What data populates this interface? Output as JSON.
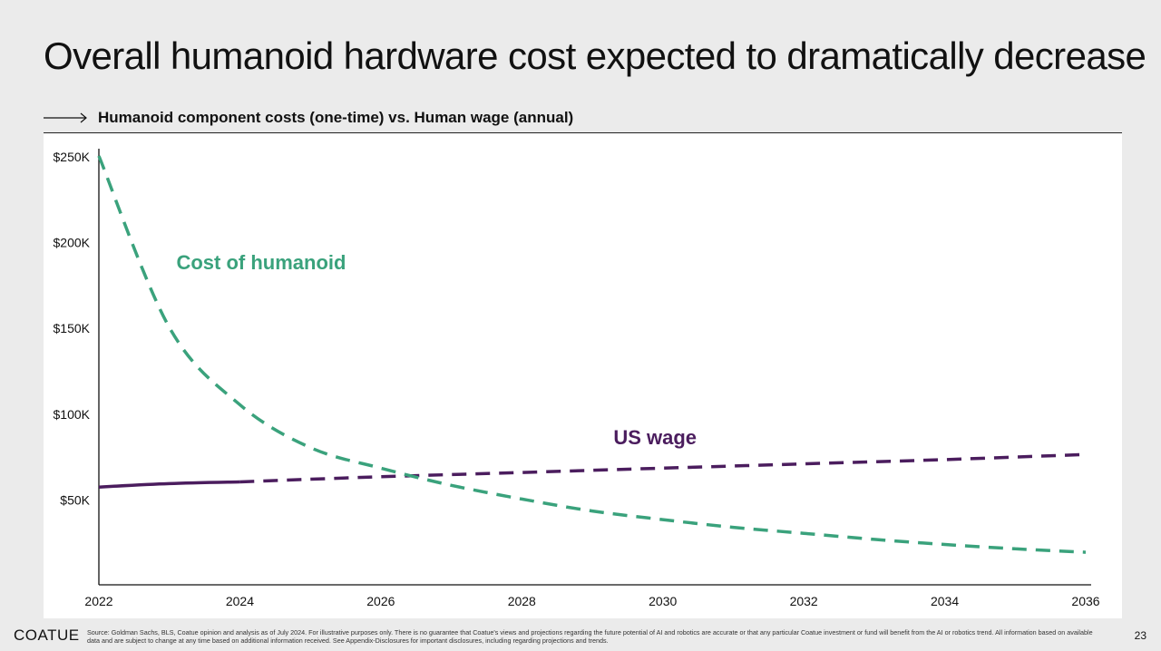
{
  "header": {
    "title": "Overall humanoid hardware cost expected to dramatically decrease",
    "subtitle": "Humanoid component costs (one-time) vs. Human wage (annual)"
  },
  "footer": {
    "brand": "COATUE",
    "source": "Source: Goldman Sachs, BLS, Coatue opinion and analysis as of July 2024. For illustrative purposes only. There is no guarantee that Coatue's views and projections regarding the future potential of AI and robotics are accurate or that any particular Coatue investment or fund will benefit from the AI or robotics trend. All information based on available data and are subject to change at any time based on additional information received. See Appendix-Disclosures for important disclosures, including regarding projections and trends.",
    "page_number": "23"
  },
  "colors": {
    "humanoid": "#3aa27c",
    "wage": "#4b1d5e",
    "axis": "#111111"
  },
  "chart_data": {
    "type": "line",
    "xlim": [
      2022,
      2036
    ],
    "ylim": [
      0,
      250000
    ],
    "x_ticks": [
      2022,
      2024,
      2026,
      2028,
      2030,
      2032,
      2034,
      2036
    ],
    "x_tick_labels": [
      "2022",
      "2024",
      "2026",
      "2028",
      "2030",
      "2032",
      "2034",
      "2036"
    ],
    "y_ticks": [
      50000,
      100000,
      150000,
      200000,
      250000
    ],
    "y_tick_labels": [
      "$50K",
      "$100K",
      "$150K",
      "$200K",
      "$250K"
    ],
    "grid": false,
    "series": [
      {
        "name": "Cost of humanoid",
        "style": "dashed",
        "x": [
          2022,
          2023,
          2024,
          2025,
          2026,
          2027,
          2028,
          2029,
          2030,
          2031,
          2032,
          2033,
          2034,
          2035,
          2036
        ],
        "y": [
          250000,
          150000,
          105000,
          80000,
          68000,
          58000,
          50000,
          43000,
          38000,
          33500,
          30000,
          26500,
          23500,
          21000,
          19000
        ]
      },
      {
        "name": "US wage",
        "style": "solid",
        "x": [
          2022,
          2023,
          2024
        ],
        "y": [
          57000,
          59000,
          60000
        ]
      },
      {
        "name": "US wage",
        "style": "dashed",
        "x": [
          2024,
          2026,
          2028,
          2030,
          2032,
          2034,
          2036
        ],
        "y": [
          60000,
          63000,
          65500,
          68000,
          70500,
          73000,
          76000
        ]
      }
    ]
  }
}
